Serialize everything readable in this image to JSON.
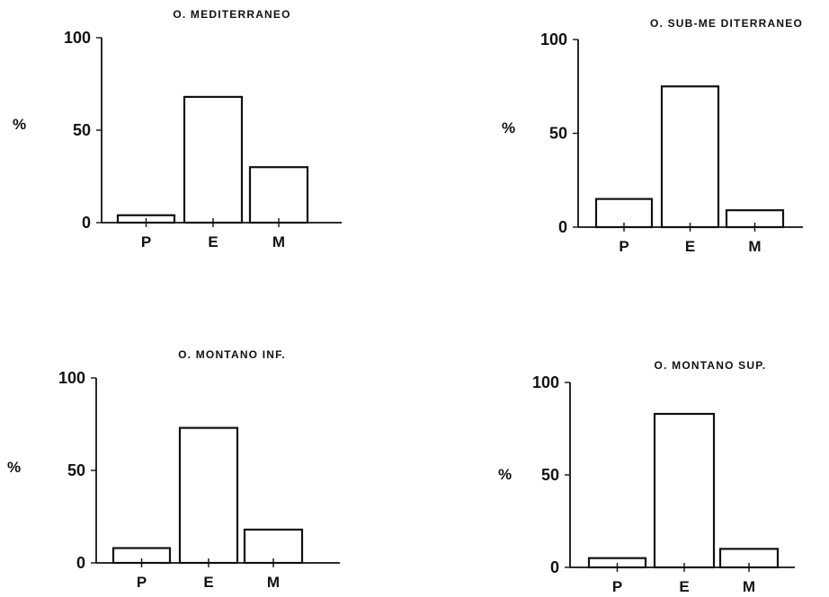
{
  "chart_data": [
    {
      "type": "bar",
      "title": "O. MEDITERRANEO",
      "ylabel": "%",
      "ylim": [
        0,
        100
      ],
      "yticks": [
        "0",
        "50",
        "100"
      ],
      "categories": [
        "P",
        "E",
        "M"
      ],
      "values": [
        4,
        68,
        30
      ],
      "grid": false
    },
    {
      "type": "bar",
      "title": "O. SUB-ME DITERRANEO",
      "ylabel": "%",
      "ylim": [
        0,
        100
      ],
      "yticks": [
        "0",
        "50",
        "100"
      ],
      "categories": [
        "P",
        "E",
        "M"
      ],
      "values": [
        15,
        75,
        9
      ],
      "grid": false
    },
    {
      "type": "bar",
      "title": "O. MONTANO  INF.",
      "ylabel": "%",
      "ylim": [
        0,
        100
      ],
      "yticks": [
        "0",
        "50",
        "100"
      ],
      "categories": [
        "P",
        "E",
        "M"
      ],
      "values": [
        8,
        73,
        18
      ],
      "grid": false
    },
    {
      "type": "bar",
      "title": "O. MONTANO   SUP.",
      "ylabel": "%",
      "ylim": [
        0,
        100
      ],
      "yticks": [
        "0",
        "50",
        "100"
      ],
      "categories": [
        "P",
        "E",
        "M"
      ],
      "values": [
        5,
        83,
        10
      ],
      "grid": false
    }
  ]
}
